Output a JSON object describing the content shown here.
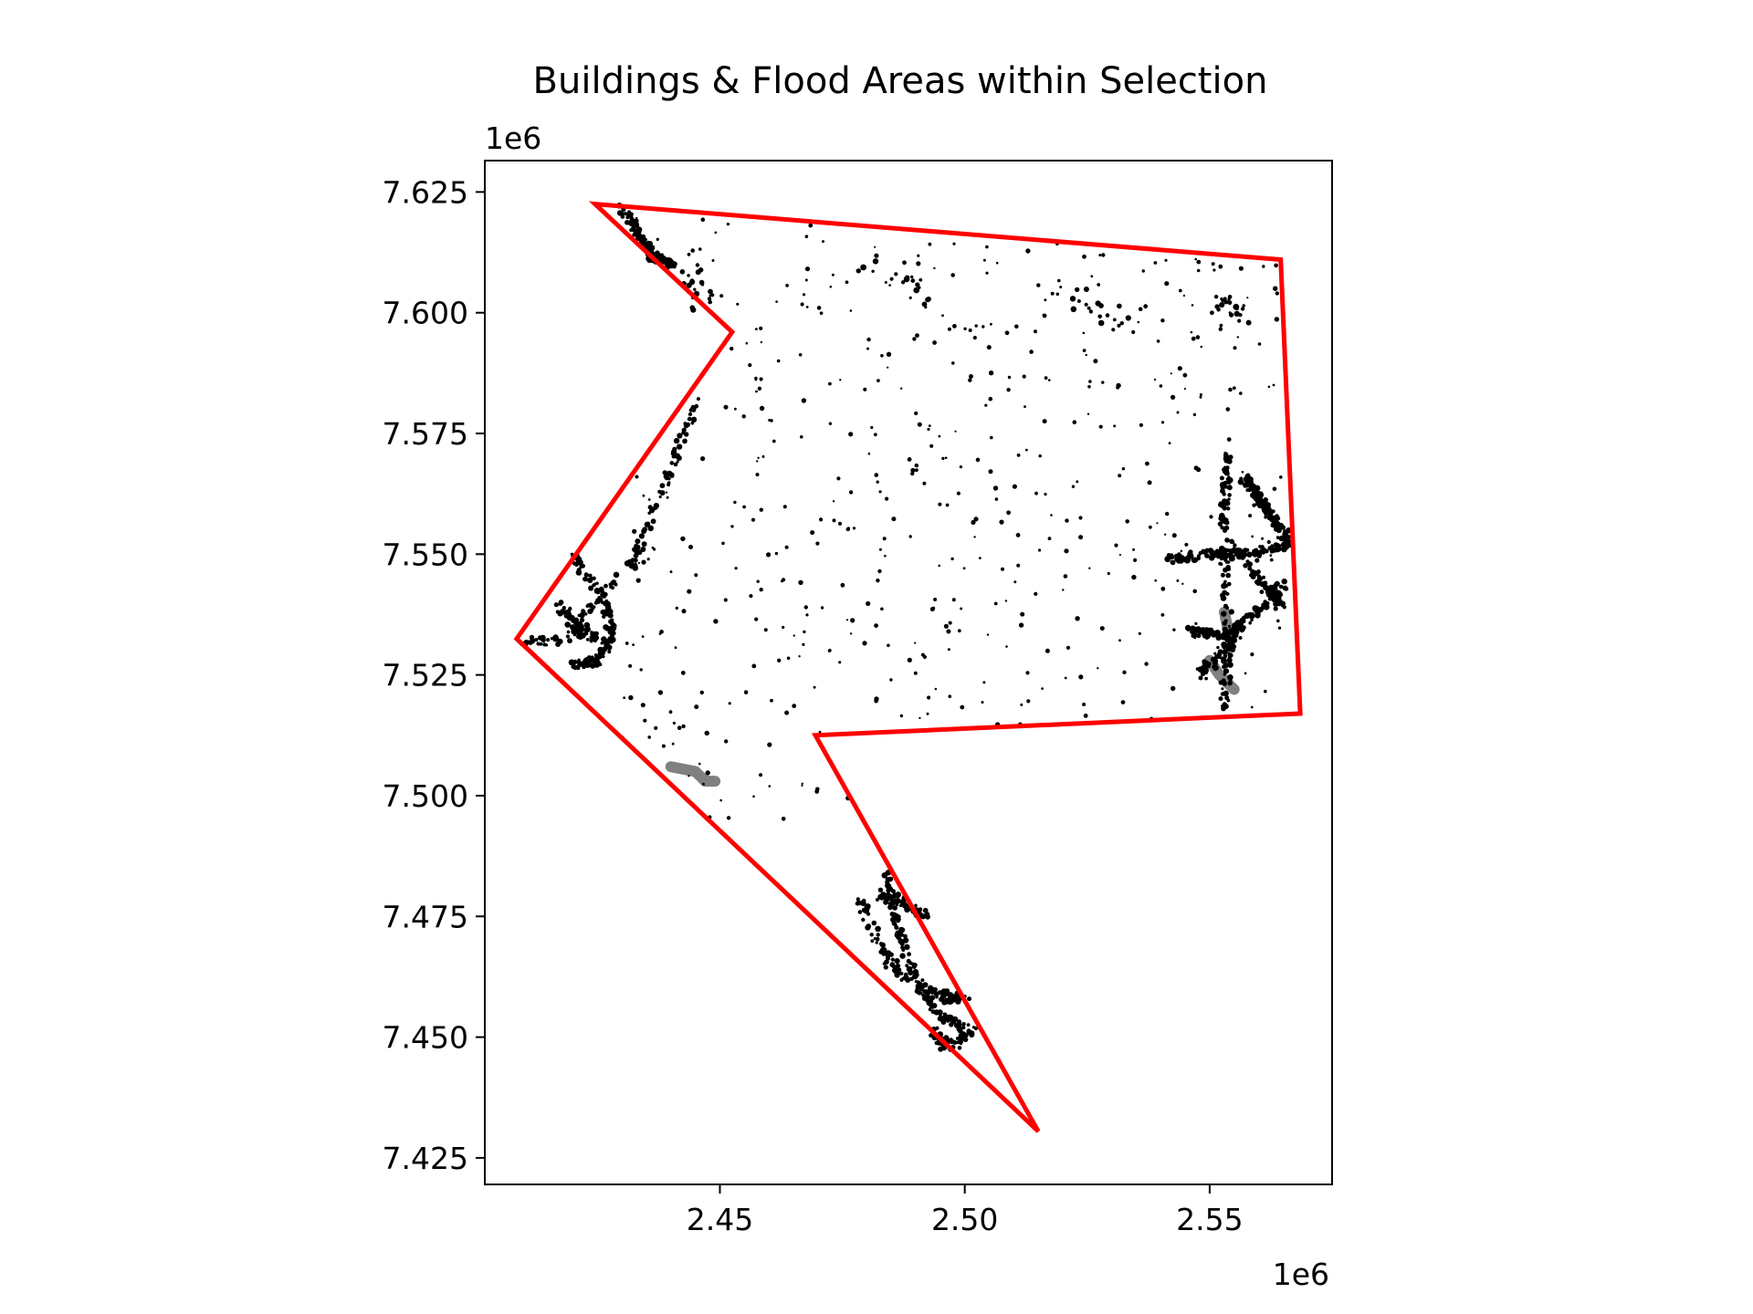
{
  "chart_data": {
    "type": "scatter",
    "title": "Buildings & Flood Areas within Selection",
    "xlabel": "",
    "ylabel": "",
    "x_offset_label": "1e6",
    "y_offset_label": "1e6",
    "xlim": [
      2.402,
      2.575
    ],
    "ylim": [
      7.4195,
      7.6315
    ],
    "x_ticks": [
      2.45,
      2.5,
      2.55
    ],
    "x_tick_labels": [
      "2.45",
      "2.50",
      "2.55"
    ],
    "y_ticks": [
      7.425,
      7.45,
      7.475,
      7.5,
      7.525,
      7.55,
      7.575,
      7.6,
      7.625
    ],
    "y_tick_labels": [
      "7.425",
      "7.450",
      "7.475",
      "7.500",
      "7.525",
      "7.550",
      "7.575",
      "7.600",
      "7.625"
    ],
    "grid": false,
    "selection_polygon": {
      "color": "#ff0000",
      "points": [
        [
          2.4245,
          7.6225
        ],
        [
          2.5645,
          7.611
        ],
        [
          2.5685,
          7.517
        ],
        [
          2.4695,
          7.5125
        ],
        [
          2.515,
          7.4305
        ],
        [
          2.4085,
          7.5325
        ],
        [
          2.4525,
          7.596
        ],
        [
          2.4245,
          7.6225
        ]
      ]
    },
    "buildings": {
      "color": "#000000",
      "clusters": [
        {
          "path": [
            [
              2.43,
              7.622
            ],
            [
              2.436,
              7.612
            ],
            [
              2.44,
              7.61
            ]
          ],
          "density": "high"
        },
        {
          "path": [
            [
              2.445,
              7.581
            ],
            [
              2.441,
              7.57
            ],
            [
              2.436,
              7.558
            ],
            [
              2.432,
              7.548
            ],
            [
              2.424,
              7.54
            ],
            [
              2.418,
              7.532
            ],
            [
              2.41,
              7.532
            ]
          ],
          "density": "high"
        },
        {
          "path": [
            [
              2.42,
              7.55
            ],
            [
              2.426,
              7.541
            ],
            [
              2.428,
              7.533
            ],
            [
              2.425,
              7.528
            ],
            [
              2.42,
              7.527
            ]
          ],
          "density": "high"
        },
        {
          "path": [
            [
              2.417,
              7.54
            ],
            [
              2.42,
              7.535
            ],
            [
              2.426,
              7.532
            ]
          ],
          "density": "medium"
        },
        {
          "path": [
            [
              2.554,
              7.571
            ],
            [
              2.553,
              7.56
            ],
            [
              2.553,
              7.548
            ],
            [
              2.554,
              7.532
            ],
            [
              2.553,
              7.518
            ]
          ],
          "density": "high"
        },
        {
          "path": [
            [
              2.542,
              7.549
            ],
            [
              2.55,
              7.55
            ],
            [
              2.558,
              7.55
            ],
            [
              2.566,
              7.552
            ]
          ],
          "density": "high"
        },
        {
          "path": [
            [
              2.557,
              7.566
            ],
            [
              2.561,
              7.56
            ],
            [
              2.566,
              7.553
            ]
          ],
          "density": "high"
        },
        {
          "path": [
            [
              2.546,
              7.534
            ],
            [
              2.553,
              7.533
            ],
            [
              2.559,
              7.537
            ],
            [
              2.566,
              7.545
            ]
          ],
          "density": "high"
        },
        {
          "path": [
            [
              2.554,
              7.552
            ],
            [
              2.56,
              7.545
            ],
            [
              2.565,
              7.54
            ]
          ],
          "density": "medium"
        },
        {
          "path": [
            [
              2.548,
              7.525
            ],
            [
              2.552,
              7.529
            ],
            [
              2.556,
              7.535
            ]
          ],
          "density": "medium"
        },
        {
          "path": [
            [
              2.484,
              7.485
            ],
            [
              2.486,
              7.474
            ],
            [
              2.49,
              7.462
            ],
            [
              2.494,
              7.455
            ],
            [
              2.5,
              7.452
            ]
          ],
          "density": "high"
        },
        {
          "path": [
            [
              2.479,
              7.478
            ],
            [
              2.483,
              7.468
            ],
            [
              2.488,
              7.462
            ]
          ],
          "density": "medium"
        },
        {
          "path": [
            [
              2.482,
              7.48
            ],
            [
              2.487,
              7.478
            ],
            [
              2.492,
              7.475
            ]
          ],
          "density": "medium"
        },
        {
          "path": [
            [
              2.491,
              7.46
            ],
            [
              2.496,
              7.458
            ],
            [
              2.5,
              7.458
            ]
          ],
          "density": "medium"
        },
        {
          "path": [
            [
              2.493,
              7.451
            ],
            [
              2.497,
              7.448
            ],
            [
              2.502,
              7.452
            ]
          ],
          "density": "medium"
        },
        {
          "path": [
            [
              2.48,
              7.611
            ],
            [
              2.488,
              7.608
            ],
            [
              2.491,
              7.603
            ]
          ],
          "density": "low"
        },
        {
          "path": [
            [
              2.52,
              7.604
            ],
            [
              2.528,
              7.602
            ],
            [
              2.533,
              7.598
            ]
          ],
          "density": "low"
        },
        {
          "path": [
            [
              2.552,
              7.602
            ],
            [
              2.556,
              7.6
            ]
          ],
          "density": "low"
        },
        {
          "path": [
            [
              2.444,
              7.608
            ],
            [
              2.447,
              7.602
            ]
          ],
          "density": "low"
        }
      ],
      "scatter_region": {
        "x": [
          2.43,
          2.565
        ],
        "y": [
          7.495,
          7.62
        ],
        "count": 520
      }
    },
    "flood_areas": {
      "color": "#808080",
      "segments": [
        {
          "path": [
            [
              2.44,
              7.506
            ],
            [
              2.445,
              7.505
            ],
            [
              2.447,
              7.503
            ],
            [
              2.449,
              7.503
            ]
          ]
        },
        {
          "path": [
            [
              2.553,
              7.538
            ],
            [
              2.554,
              7.533
            ]
          ]
        },
        {
          "path": [
            [
              2.55,
              7.528
            ],
            [
              2.552,
              7.525
            ],
            [
              2.555,
              7.522
            ]
          ]
        }
      ]
    }
  }
}
